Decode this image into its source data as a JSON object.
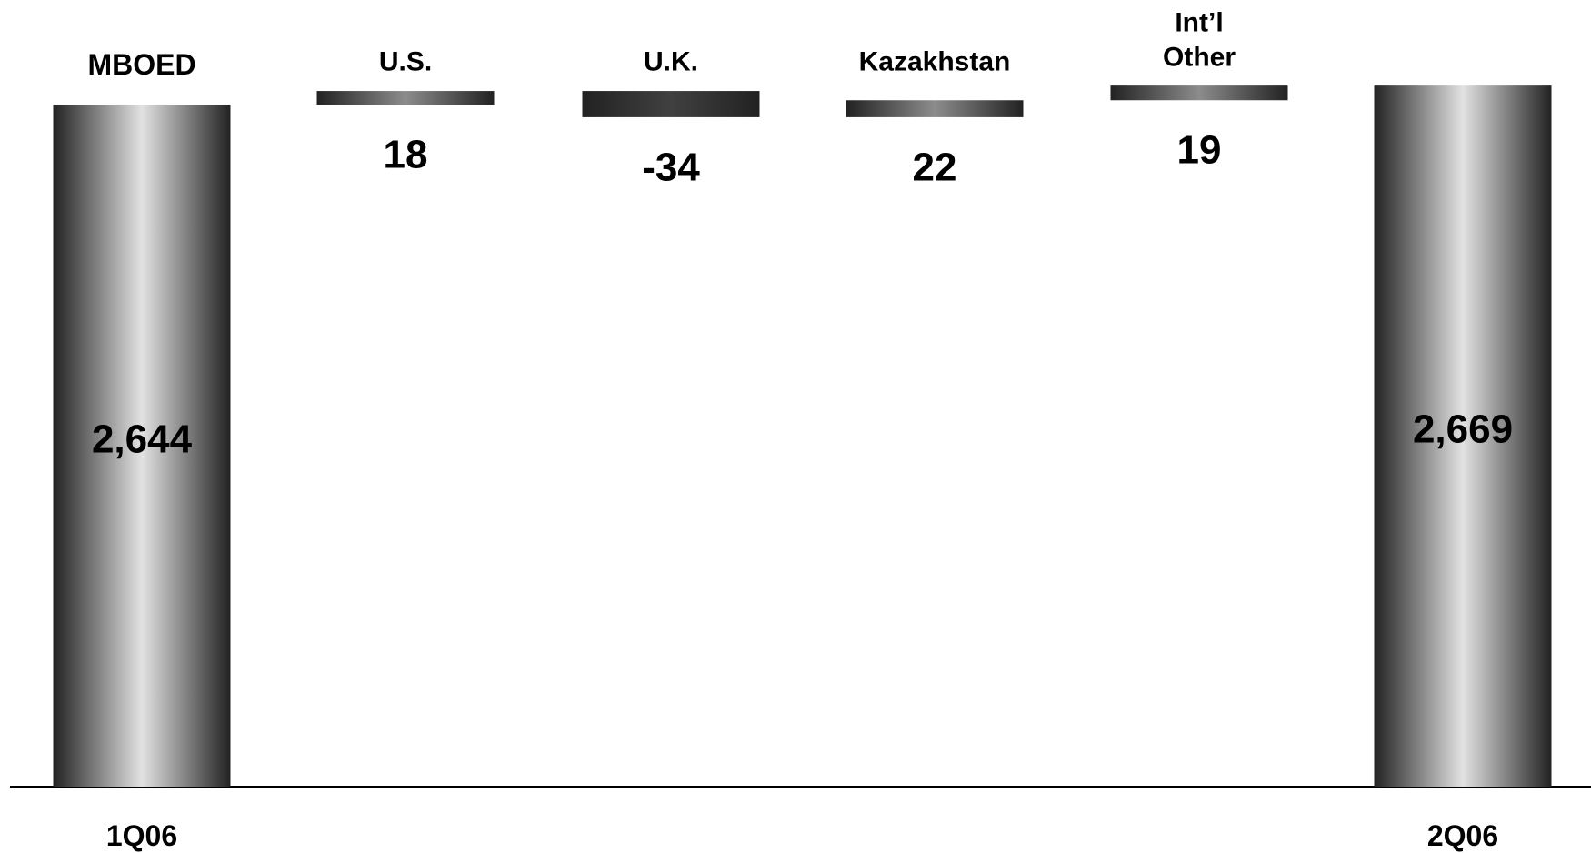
{
  "chart_data": {
    "type": "waterfall",
    "y_label": "MBOED",
    "categories": [
      "1Q06",
      "U.S.",
      "U.K.",
      "Kazakhstan",
      "Int’l\nOther",
      "2Q06"
    ],
    "measures": [
      "total",
      "relative",
      "relative",
      "relative",
      "relative",
      "total"
    ],
    "values": [
      2644,
      18,
      -34,
      22,
      19,
      2669
    ],
    "value_labels": [
      "2,644",
      "18",
      "-34",
      "22",
      "19",
      "2,669"
    ],
    "colors": [
      "#e2e2e2",
      "#8c8c8c",
      "#404040",
      "#8c8c8c",
      "#8c8c8c",
      "#e2e2e2"
    ],
    "edge_color": "#222222",
    "ylim": [
      1760,
      2780
    ]
  }
}
